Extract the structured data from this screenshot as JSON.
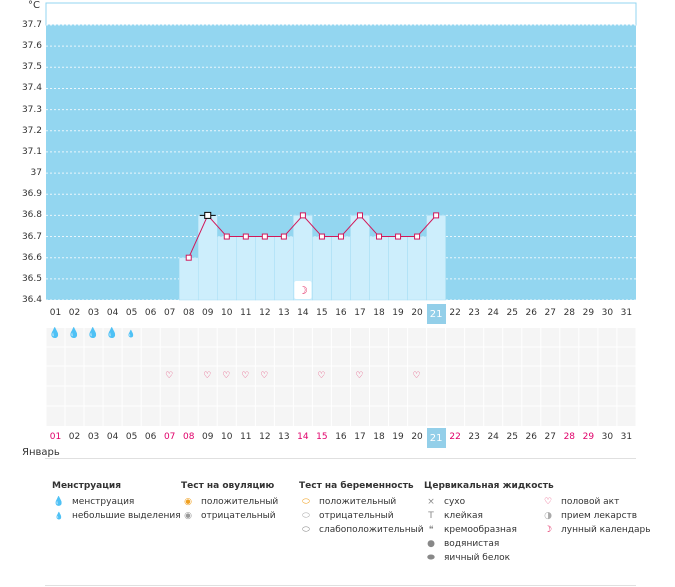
{
  "unit": "°C",
  "y_ticks": [
    "37.7",
    "37.6",
    "37.5",
    "37.4",
    "37.3",
    "37.2",
    "37.1",
    "37",
    "36.9",
    "36.8",
    "36.7",
    "36.6",
    "36.5",
    "36.4"
  ],
  "chart_data": {
    "type": "line",
    "ylim": [
      36.4,
      37.8
    ],
    "x": [
      "01",
      "02",
      "03",
      "04",
      "05",
      "06",
      "07",
      "08",
      "09",
      "10",
      "11",
      "12",
      "13",
      "14",
      "15",
      "16",
      "17",
      "18",
      "19",
      "20",
      "21",
      "22",
      "23",
      "24",
      "25",
      "26",
      "27",
      "28",
      "29",
      "30",
      "31"
    ],
    "series": [
      {
        "values": [
          null,
          null,
          null,
          null,
          null,
          null,
          null,
          36.6,
          36.8,
          36.7,
          36.7,
          36.7,
          36.7,
          36.8,
          36.7,
          36.7,
          36.8,
          36.7,
          36.7,
          36.7,
          36.8,
          null,
          null,
          null,
          null,
          null,
          null,
          null,
          null,
          null,
          null
        ]
      }
    ]
  },
  "colors": {
    "bg": "#93d6f0",
    "fill": "#cdeefc",
    "line": "#d2185a",
    "selected": "#93cfe9",
    "accent": "#e0006a"
  },
  "days": [
    "01",
    "02",
    "03",
    "04",
    "05",
    "06",
    "07",
    "08",
    "09",
    "10",
    "11",
    "12",
    "13",
    "14",
    "15",
    "16",
    "17",
    "18",
    "19",
    "20",
    "21",
    "22",
    "23",
    "24",
    "25",
    "26",
    "27",
    "28",
    "29",
    "30",
    "31"
  ],
  "selected_day": "21",
  "bottom_red_days": [
    "01",
    "07",
    "08",
    "14",
    "15",
    "21",
    "22",
    "28",
    "29"
  ],
  "moon_day": "14",
  "menstruation_days": {
    "01": "large",
    "02": "large",
    "03": "large",
    "04": "large",
    "05": "small"
  },
  "intercourse_days": [
    "07",
    "09",
    "10",
    "11",
    "12",
    "15",
    "17",
    "20"
  ],
  "month": "Январь",
  "legend": {
    "menstruation": {
      "title": "Менструация",
      "items": [
        {
          "icon": "drop-large",
          "label": "менструация"
        },
        {
          "icon": "drop-small",
          "label": "небольшие выделения"
        }
      ]
    },
    "ovulation": {
      "title": "Тест на овуляцию",
      "items": [
        {
          "icon": "orange-circle",
          "label": "положительный"
        },
        {
          "icon": "grey-circle",
          "label": "отрицательный"
        }
      ]
    },
    "pregnancy": {
      "title": "Тест на беременность",
      "items": [
        {
          "icon": "orange-oval",
          "label": "положительный"
        },
        {
          "icon": "grey-oval",
          "label": "отрицательный"
        },
        {
          "icon": "half-oval",
          "label": "слабоположительный"
        }
      ]
    },
    "fluid": {
      "title": "Цервикальная жидкость",
      "items": [
        {
          "icon": "x",
          "label": "сухо"
        },
        {
          "icon": "t",
          "label": "клейкая"
        },
        {
          "icon": "drop-grey",
          "label": "кремообразная"
        },
        {
          "icon": "drop-grey-small",
          "label": "водянистая"
        },
        {
          "icon": "egg",
          "label": "яичный белок"
        }
      ]
    },
    "other": {
      "items": [
        {
          "icon": "heart",
          "label": "половой акт"
        },
        {
          "icon": "pill",
          "label": "прием лекарств"
        },
        {
          "icon": "moon",
          "label": "лунный календарь"
        }
      ]
    }
  }
}
